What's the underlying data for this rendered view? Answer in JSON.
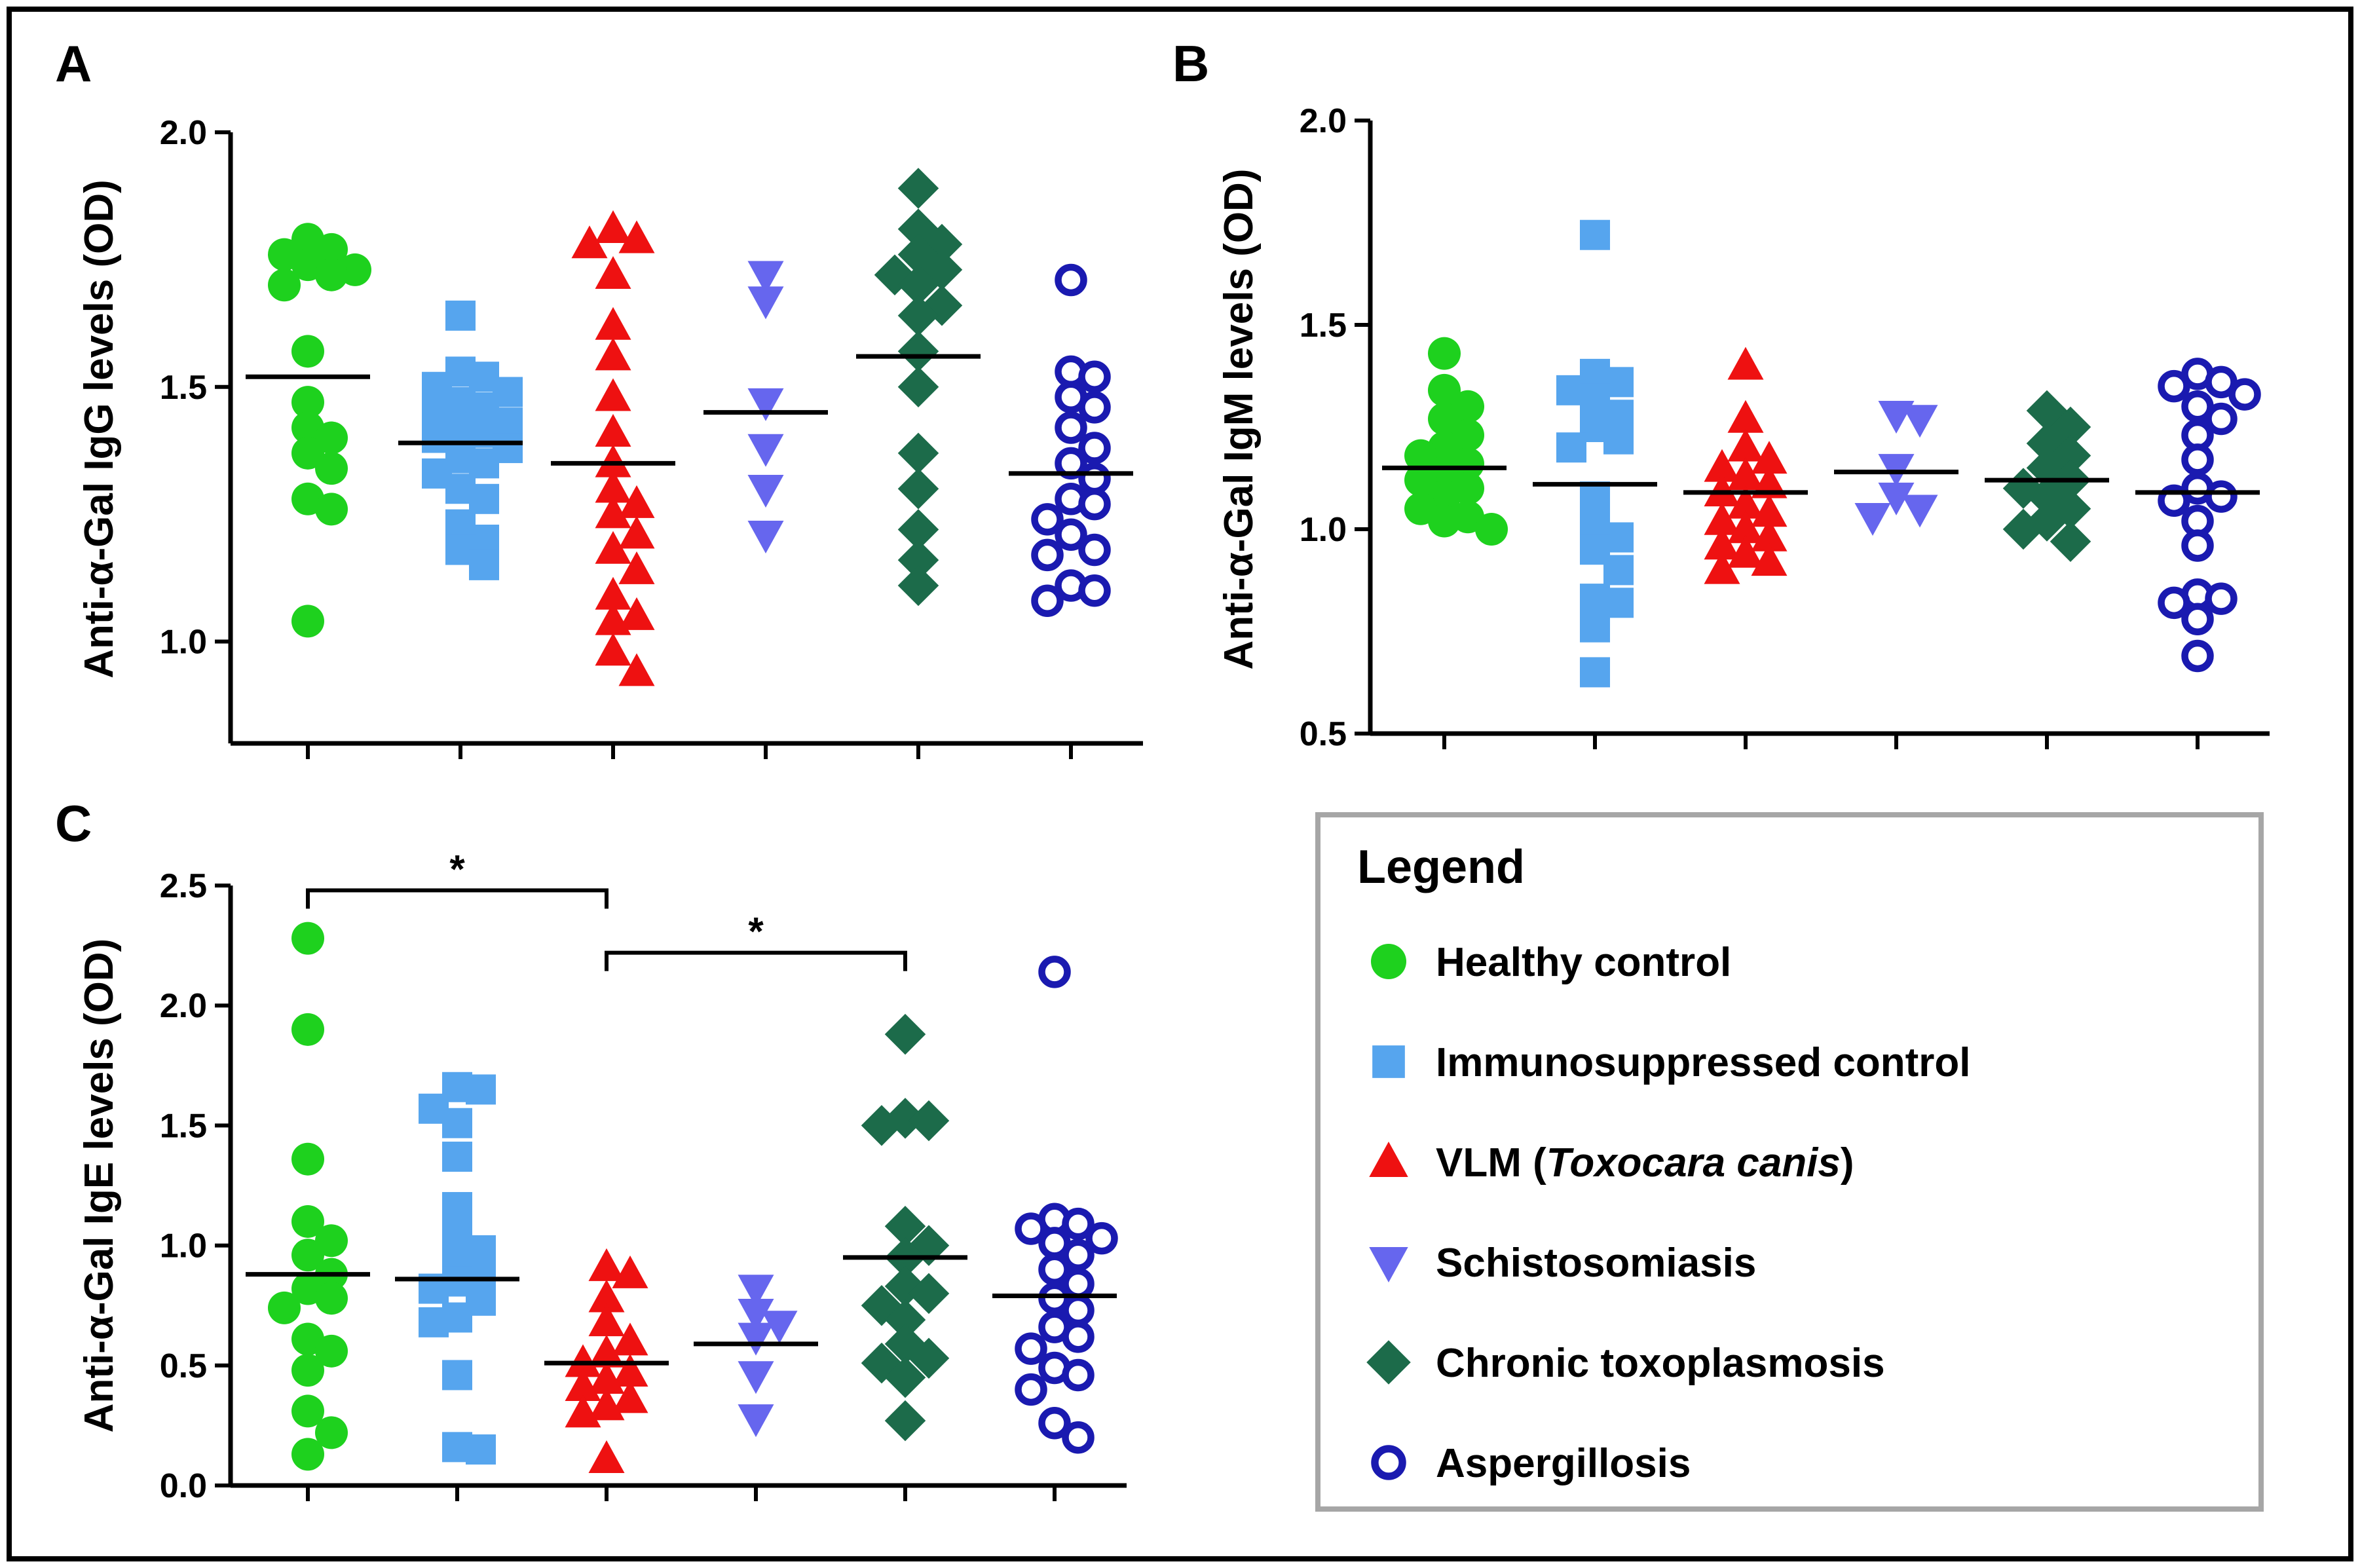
{
  "chart_data": [
    {
      "panel": "A",
      "type": "scatter",
      "title": "",
      "xlabel": "",
      "ylabel": "Anti-α-Gal IgG levels (OD)",
      "ylim": [
        0.8,
        2.0
      ],
      "yticks": [
        1.0,
        1.5,
        2.0
      ],
      "ytick_labels": [
        "1.0",
        "1.5",
        "2.0"
      ],
      "categories": [
        "Healthy control",
        "Immunosuppressed control",
        "VLM (Toxocara canis)",
        "Schistosomiasis",
        "Chronic toxoplasmosis",
        "Aspergillosis"
      ],
      "series": [
        {
          "name": "Healthy control",
          "mean": 1.52,
          "values": [
            1.79,
            1.77,
            1.76,
            1.74,
            1.73,
            1.72,
            1.7,
            1.57,
            1.47,
            1.42,
            1.4,
            1.37,
            1.34,
            1.28,
            1.26,
            1.04
          ]
        },
        {
          "name": "Immunosuppressed control",
          "mean": 1.39,
          "values": [
            1.64,
            1.53,
            1.52,
            1.5,
            1.49,
            1.47,
            1.46,
            1.45,
            1.43,
            1.42,
            1.41,
            1.4,
            1.38,
            1.36,
            1.35,
            1.33,
            1.3,
            1.28,
            1.23,
            1.2,
            1.18,
            1.15
          ]
        },
        {
          "name": "VLM (Toxocara canis)",
          "mean": 1.35,
          "values": [
            1.81,
            1.79,
            1.78,
            1.72,
            1.62,
            1.56,
            1.48,
            1.41,
            1.35,
            1.3,
            1.27,
            1.25,
            1.21,
            1.18,
            1.14,
            1.09,
            1.05,
            1.04,
            0.98,
            0.94
          ]
        },
        {
          "name": "Schistosomiasis",
          "mean": 1.45,
          "values": [
            1.72,
            1.67,
            1.47,
            1.38,
            1.3,
            1.21
          ]
        },
        {
          "name": "Chronic toxoplasmosis",
          "mean": 1.56,
          "values": [
            1.89,
            1.81,
            1.78,
            1.76,
            1.73,
            1.72,
            1.7,
            1.66,
            1.64,
            1.57,
            1.5,
            1.37,
            1.3,
            1.22,
            1.16,
            1.11
          ]
        },
        {
          "name": "Aspergillosis",
          "mean": 1.33,
          "values": [
            1.71,
            1.53,
            1.52,
            1.48,
            1.46,
            1.42,
            1.38,
            1.35,
            1.32,
            1.28,
            1.27,
            1.24,
            1.21,
            1.18,
            1.17,
            1.11,
            1.1,
            1.08
          ]
        }
      ]
    },
    {
      "panel": "B",
      "type": "scatter",
      "title": "",
      "xlabel": "",
      "ylabel": "Anti-α-Gal IgM levels (OD)",
      "ylim": [
        0.5,
        2.0
      ],
      "yticks": [
        0.5,
        1.0,
        1.5,
        2.0
      ],
      "ytick_labels": [
        "0.5",
        "1.0",
        "1.5",
        "2.0"
      ],
      "categories": [
        "Healthy control",
        "Immunosuppressed control",
        "VLM (Toxocara canis)",
        "Schistosomiasis",
        "Chronic toxoplasmosis",
        "Aspergillosis"
      ],
      "series": [
        {
          "name": "Healthy control",
          "mean": 1.15,
          "values": [
            1.43,
            1.34,
            1.3,
            1.27,
            1.23,
            1.2,
            1.18,
            1.16,
            1.14,
            1.12,
            1.1,
            1.08,
            1.05,
            1.03,
            1.02,
            1.0
          ]
        },
        {
          "name": "Immunosuppressed control",
          "mean": 1.11,
          "values": [
            1.72,
            1.38,
            1.36,
            1.34,
            1.32,
            1.28,
            1.25,
            1.22,
            1.2,
            1.08,
            1.02,
            0.98,
            0.95,
            0.9,
            0.83,
            0.82,
            0.76,
            0.65
          ]
        },
        {
          "name": "VLM (Toxocara canis)",
          "mean": 1.09,
          "values": [
            1.4,
            1.27,
            1.2,
            1.17,
            1.15,
            1.13,
            1.11,
            1.09,
            1.06,
            1.04,
            1.02,
            1.0,
            0.98,
            0.96,
            0.94,
            0.92,
            0.9
          ]
        },
        {
          "name": "Schistosomiasis",
          "mean": 1.14,
          "values": [
            1.28,
            1.27,
            1.15,
            1.08,
            1.05,
            1.03
          ]
        },
        {
          "name": "Chronic toxoplasmosis",
          "mean": 1.12,
          "values": [
            1.29,
            1.25,
            1.21,
            1.18,
            1.15,
            1.12,
            1.1,
            1.08,
            1.05,
            1.02,
            1.0,
            0.97
          ]
        },
        {
          "name": "Aspergillosis",
          "mean": 1.09,
          "values": [
            1.38,
            1.36,
            1.35,
            1.33,
            1.3,
            1.27,
            1.23,
            1.17,
            1.1,
            1.08,
            1.07,
            1.02,
            0.96,
            0.84,
            0.83,
            0.82,
            0.78,
            0.69
          ]
        }
      ]
    },
    {
      "panel": "C",
      "type": "scatter",
      "title": "",
      "xlabel": "",
      "ylabel": "Anti-α-Gal IgE levels (OD)",
      "ylim": [
        0.0,
        2.5
      ],
      "yticks": [
        0.0,
        0.5,
        1.0,
        1.5,
        2.0,
        2.5
      ],
      "ytick_labels": [
        "0.0",
        "0.5",
        "1.0",
        "1.5",
        "2.0",
        "2.5"
      ],
      "categories": [
        "Healthy control",
        "Immunosuppressed control",
        "VLM (Toxocara canis)",
        "Schistosomiasis",
        "Chronic toxoplasmosis",
        "Aspergillosis"
      ],
      "series": [
        {
          "name": "Healthy control",
          "mean": 0.88,
          "values": [
            2.28,
            1.9,
            1.36,
            1.1,
            1.02,
            0.96,
            0.88,
            0.82,
            0.78,
            0.74,
            0.61,
            0.56,
            0.48,
            0.31,
            0.22,
            0.13
          ]
        },
        {
          "name": "Immunosuppressed control",
          "mean": 0.86,
          "values": [
            1.66,
            1.65,
            1.57,
            1.51,
            1.37,
            1.16,
            1.06,
            0.98,
            0.95,
            0.88,
            0.85,
            0.82,
            0.77,
            0.7,
            0.68,
            0.46,
            0.16,
            0.15
          ]
        },
        {
          "name": "VLM (Toxocara canis)",
          "mean": 0.51,
          "values": [
            0.91,
            0.88,
            0.78,
            0.68,
            0.6,
            0.55,
            0.51,
            0.47,
            0.44,
            0.41,
            0.36,
            0.33,
            0.3,
            0.11
          ]
        },
        {
          "name": "Schistosomiasis",
          "mean": 0.59,
          "values": [
            0.82,
            0.72,
            0.67,
            0.62,
            0.46,
            0.28
          ]
        },
        {
          "name": "Chronic toxoplasmosis",
          "mean": 0.95,
          "values": [
            1.88,
            1.53,
            1.52,
            1.5,
            1.08,
            1.0,
            0.95,
            0.83,
            0.8,
            0.75,
            0.69,
            0.59,
            0.53,
            0.51,
            0.45,
            0.27
          ]
        },
        {
          "name": "Aspergillosis",
          "mean": 0.79,
          "values": [
            2.14,
            1.11,
            1.09,
            1.07,
            1.03,
            1.01,
            0.96,
            0.9,
            0.84,
            0.78,
            0.73,
            0.66,
            0.62,
            0.57,
            0.49,
            0.46,
            0.4,
            0.26,
            0.2
          ]
        }
      ],
      "annotations": [
        {
          "from": "Healthy control",
          "to": "VLM (Toxocara canis)",
          "y": 2.48,
          "label": "*"
        },
        {
          "from": "VLM (Toxocara canis)",
          "to": "Chronic toxoplasmosis",
          "y": 2.22,
          "label": "*"
        }
      ]
    }
  ],
  "legend": {
    "title": "Legend",
    "entries": [
      {
        "label": "Healthy control",
        "italic_part": "",
        "label_suffix": "",
        "marker": "circle",
        "color": "#1ed11e",
        "filled": true
      },
      {
        "label": "Immunosuppressed control",
        "italic_part": "",
        "label_suffix": "",
        "marker": "square",
        "color": "#56a5ee",
        "filled": true
      },
      {
        "label": "VLM (",
        "italic_part": "Toxocara canis",
        "label_suffix": ")",
        "marker": "triangle-up",
        "color": "#ee1111",
        "filled": true
      },
      {
        "label": "Schistosomiasis",
        "italic_part": "",
        "label_suffix": "",
        "marker": "triangle-down",
        "color": "#6666ee",
        "filled": true
      },
      {
        "label": "Chronic toxoplasmosis",
        "italic_part": "",
        "label_suffix": "",
        "marker": "diamond",
        "color": "#1c6b4a",
        "filled": true
      },
      {
        "label": "Aspergillosis",
        "italic_part": "",
        "label_suffix": "",
        "marker": "circle-open",
        "color": "#1a1ab0",
        "filled": false
      }
    ]
  },
  "colors": {
    "frame": "#000000",
    "legend_border": "#a6a6a6",
    "mean_line": "#000000"
  }
}
